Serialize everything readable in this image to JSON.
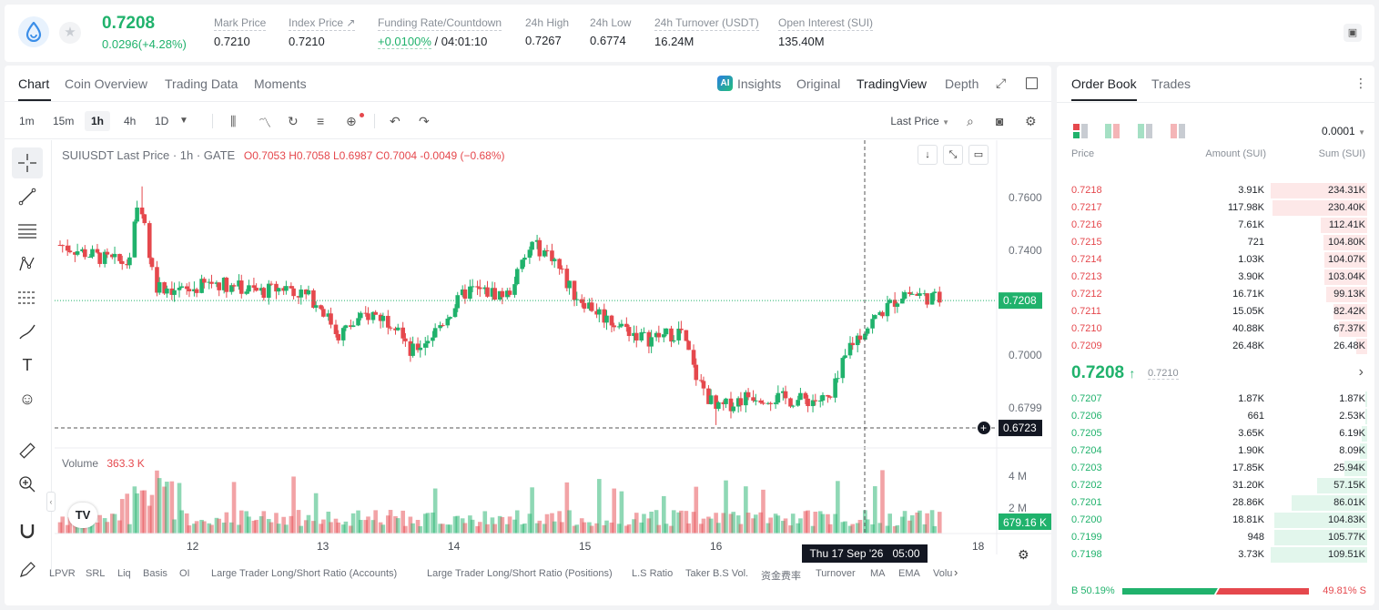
{
  "header": {
    "last_price": "0.7208",
    "change": "0.0296(+4.28%)",
    "stats": [
      {
        "label": "Mark Price",
        "value": "0.7210"
      },
      {
        "label": "Index Price ↗",
        "value": "0.7210"
      },
      {
        "label": "Funding Rate/Countdown",
        "value": "+0.0100%",
        "value2": " / 04:01:10"
      },
      {
        "label": "24h High",
        "value": "0.7267"
      },
      {
        "label": "24h Low",
        "value": "0.6774"
      },
      {
        "label": "24h Turnover (USDT)",
        "value": "16.24M"
      },
      {
        "label": "Open Interest (SUI)",
        "value": "135.40M"
      }
    ]
  },
  "chart_tabs": [
    "Chart",
    "Coin Overview",
    "Trading Data",
    "Moments"
  ],
  "view_tabs": [
    "Insights",
    "Original",
    "TradingView",
    "Depth"
  ],
  "timeframes": [
    "1m",
    "15m",
    "1h",
    "4h",
    "1D"
  ],
  "last_price_select": "Last Price",
  "legend": {
    "symbol": "SUIUSDT Last Price · 1h · GATE",
    "o": "O0.7053",
    "h": "H0.7058",
    "l": "L0.6987",
    "c": "C0.7004",
    "chg": "-0.0049 (−0.68%)"
  },
  "volume_legend": {
    "label": "Volume",
    "value": "363.3 K"
  },
  "crosshair": {
    "date": "Thu 17 Sep '26",
    "time": "05:00",
    "price": "0.6723",
    "volume": "679.16 K"
  },
  "indicators": [
    "LPVR",
    "SRL",
    "Liq",
    "Basis",
    "OI",
    "Large Trader Long/Short Ratio (Accounts)",
    "Large Trader Long/Short Ratio (Positions)",
    "L.S Ratio",
    "Taker B.S Vol.",
    "资金费率",
    "Turnover",
    "MA",
    "EMA",
    "Volu"
  ],
  "chart_data": {
    "type": "candlestick",
    "symbol": "SUIUSDT",
    "interval": "1h",
    "y_ticks": [
      "0.7600",
      "0.7400",
      "0.7208",
      "0.7000",
      "0.6799"
    ],
    "y_range": [
      0.664,
      0.768
    ],
    "x_ticks": [
      "12",
      "13",
      "14",
      "15",
      "16",
      "18"
    ],
    "volume_ticks": [
      "4 M",
      "2 M"
    ],
    "last_price": 0.7208,
    "highlight_price": 0.6723,
    "grid": false
  },
  "orderbook": {
    "tabs": [
      "Order Book",
      "Trades"
    ],
    "precision": "0.0001",
    "headers": {
      "price": "Price",
      "amount": "Amount (SUI)",
      "sum": "Sum (SUI)"
    },
    "asks": [
      {
        "price": "0.7218",
        "amount": "3.91K",
        "sum": "234.31K",
        "depth": 1.0
      },
      {
        "price": "0.7217",
        "amount": "117.98K",
        "sum": "230.40K",
        "depth": 0.98
      },
      {
        "price": "0.7216",
        "amount": "7.61K",
        "sum": "112.41K",
        "depth": 0.48
      },
      {
        "price": "0.7215",
        "amount": "721",
        "sum": "104.80K",
        "depth": 0.45
      },
      {
        "price": "0.7214",
        "amount": "1.03K",
        "sum": "104.07K",
        "depth": 0.44
      },
      {
        "price": "0.7213",
        "amount": "3.90K",
        "sum": "103.04K",
        "depth": 0.44
      },
      {
        "price": "0.7212",
        "amount": "16.71K",
        "sum": "99.13K",
        "depth": 0.42
      },
      {
        "price": "0.7211",
        "amount": "15.05K",
        "sum": "82.42K",
        "depth": 0.35
      },
      {
        "price": "0.7210",
        "amount": "40.88K",
        "sum": "67.37K",
        "depth": 0.29
      },
      {
        "price": "0.7209",
        "amount": "26.48K",
        "sum": "26.48K",
        "depth": 0.11
      }
    ],
    "mid_price": "0.7208",
    "mid_index": "0.7210",
    "bids": [
      {
        "price": "0.7207",
        "amount": "1.87K",
        "sum": "1.87K",
        "depth": 0.017
      },
      {
        "price": "0.7206",
        "amount": "661",
        "sum": "2.53K",
        "depth": 0.023
      },
      {
        "price": "0.7205",
        "amount": "3.65K",
        "sum": "6.19K",
        "depth": 0.056
      },
      {
        "price": "0.7204",
        "amount": "1.90K",
        "sum": "8.09K",
        "depth": 0.074
      },
      {
        "price": "0.7203",
        "amount": "17.85K",
        "sum": "25.94K",
        "depth": 0.24
      },
      {
        "price": "0.7202",
        "amount": "31.20K",
        "sum": "57.15K",
        "depth": 0.52
      },
      {
        "price": "0.7201",
        "amount": "28.86K",
        "sum": "86.01K",
        "depth": 0.78
      },
      {
        "price": "0.7200",
        "amount": "18.81K",
        "sum": "104.83K",
        "depth": 0.96
      },
      {
        "price": "0.7199",
        "amount": "948",
        "sum": "105.77K",
        "depth": 0.965
      },
      {
        "price": "0.7198",
        "amount": "3.73K",
        "sum": "109.51K",
        "depth": 1.0
      }
    ],
    "buy_ratio": "B 50.19%",
    "sell_ratio": "49.81% S",
    "buy_fraction": 0.5019
  },
  "colors": {
    "up": "#20b26c",
    "down": "#e5484d",
    "accent": "#1f2329"
  }
}
